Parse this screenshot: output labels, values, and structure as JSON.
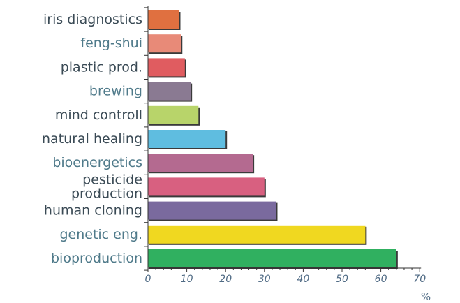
{
  "chart_data": {
    "type": "bar",
    "orientation": "horizontal",
    "categories": [
      "iris diagnostics",
      "feng-shui",
      "plastic prod.",
      "brewing",
      "mind controll",
      "natural healing",
      "bioenergetics",
      "pesticide production",
      "human cloning",
      "genetic eng.",
      "bioproduction"
    ],
    "category_lines": [
      [
        "iris diagnostics"
      ],
      [
        "feng-shui"
      ],
      [
        "plastic prod."
      ],
      [
        "brewing"
      ],
      [
        "mind controll"
      ],
      [
        "natural healing"
      ],
      [
        "bioenergetics"
      ],
      [
        "pesticide",
        "production"
      ],
      [
        "human cloning"
      ],
      [
        "genetic eng."
      ],
      [
        "bioproduction"
      ]
    ],
    "values": [
      8,
      8.5,
      9.5,
      11,
      13,
      20,
      27,
      30,
      33,
      56,
      64
    ],
    "colors": [
      "#e07040",
      "#e88a78",
      "#e05c60",
      "#8a7a92",
      "#b8d46a",
      "#5fbde0",
      "#b46a90",
      "#d86080",
      "#7a6a9e",
      "#f0d820",
      "#30b060"
    ],
    "label_colors": [
      "#3a4a55",
      "#4f7a8a",
      "#3a4a55",
      "#4f7a8a",
      "#3a4a55",
      "#3a4a55",
      "#4f7a8a",
      "#3a4a55",
      "#3a4a55",
      "#4f7a8a",
      "#4f7a8a"
    ],
    "xticks": [
      0,
      10,
      20,
      30,
      40,
      50,
      60,
      70
    ],
    "xlim": [
      0,
      70
    ],
    "unit": "%",
    "grid": false
  }
}
